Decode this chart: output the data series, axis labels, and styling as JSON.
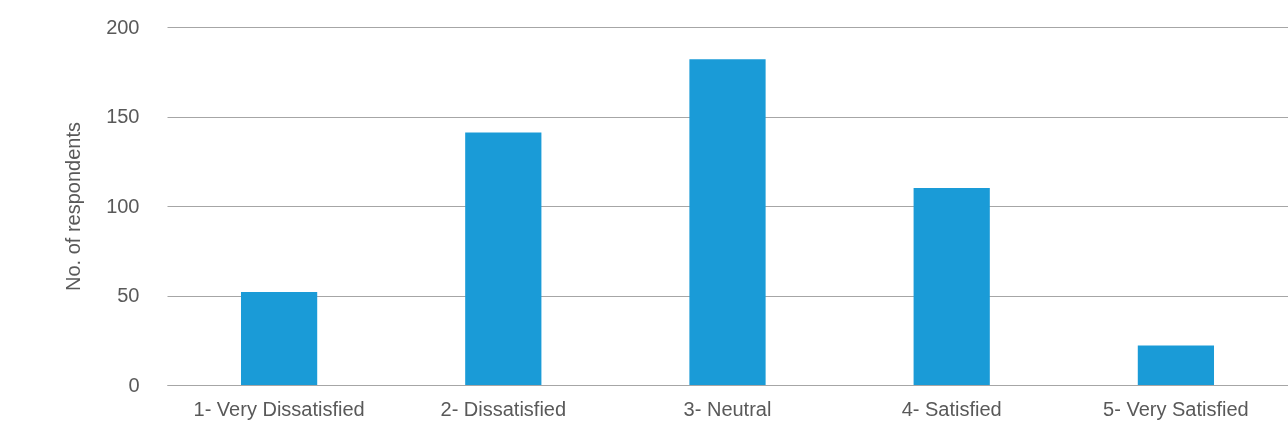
{
  "chart_data": {
    "type": "bar",
    "ylabel": "No. of respondents",
    "categories": [
      "1- Very Dissatisfied",
      "2- Dissatisfied",
      "3- Neutral",
      "4- Satisfied",
      "5- Very Satisfied"
    ],
    "values": [
      52,
      141,
      182,
      110,
      22
    ],
    "color": "#1a9bd7",
    "ylim": [
      0,
      200
    ],
    "yticks": [
      0,
      50,
      100,
      150,
      200
    ],
    "grid": "y"
  }
}
